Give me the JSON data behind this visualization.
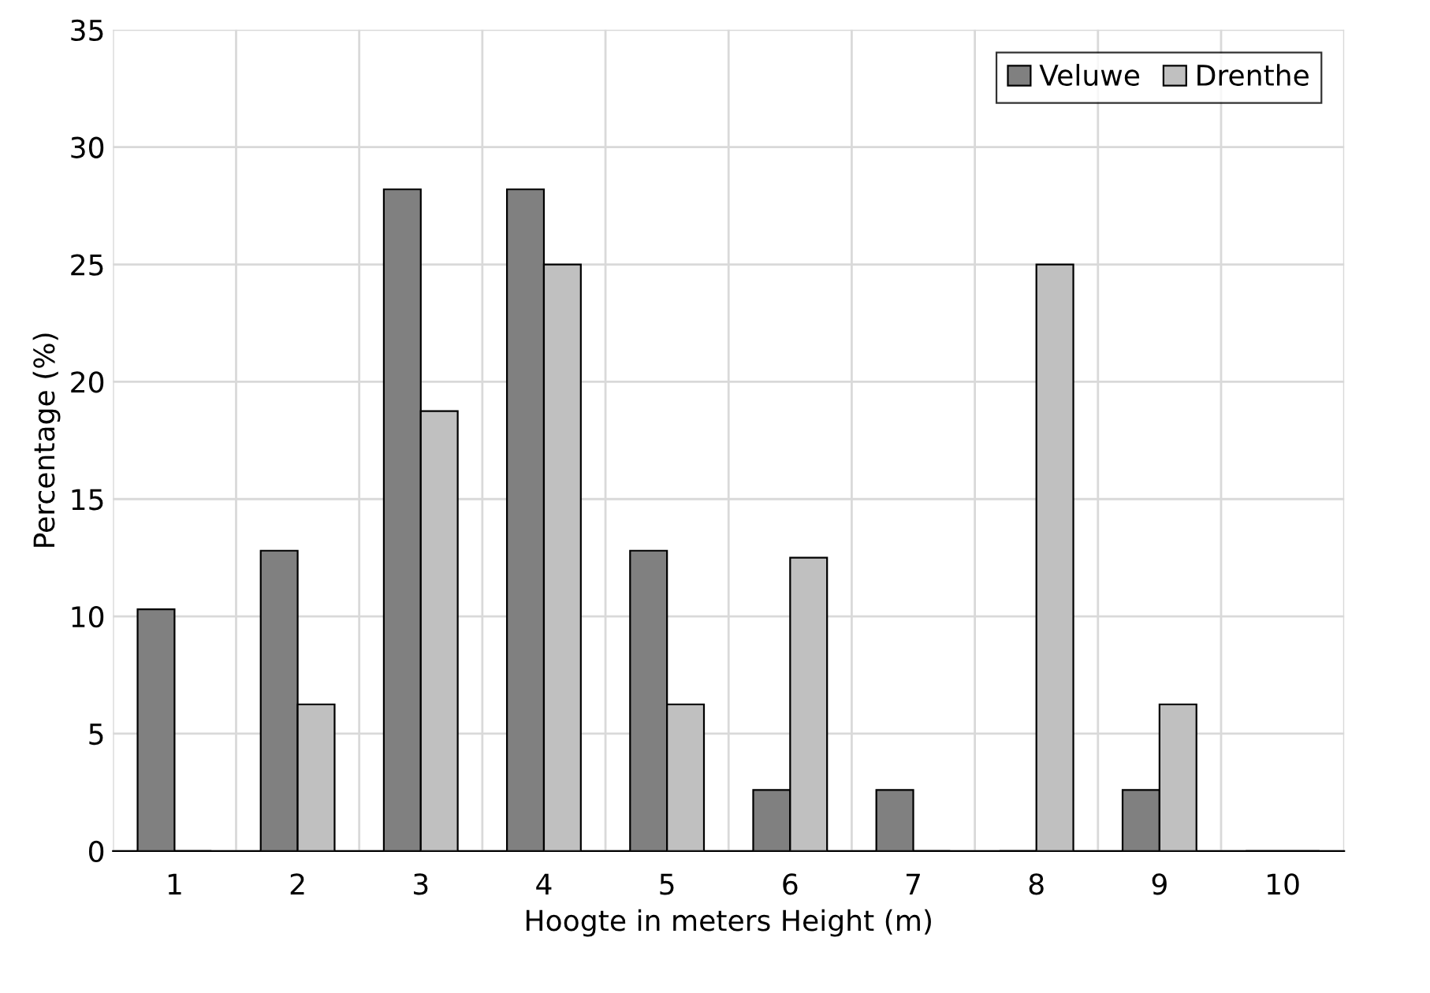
{
  "chart_data": {
    "type": "bar",
    "xlabel": "Hoogte in meters Height (m)",
    "ylabel": "Percentage (%)",
    "categories": [
      "1",
      "2",
      "3",
      "4",
      "5",
      "6",
      "7",
      "8",
      "9",
      "10"
    ],
    "series": [
      {
        "name": "Veluwe",
        "color": "#808080",
        "values": [
          10.3,
          12.8,
          28.2,
          28.2,
          12.8,
          2.6,
          2.6,
          0,
          2.6,
          0
        ]
      },
      {
        "name": "Drenthe",
        "color": "#c0c0c0",
        "values": [
          0,
          6.25,
          18.75,
          25,
          6.25,
          12.5,
          0,
          25,
          6.25,
          0
        ]
      }
    ],
    "ylim": [
      0,
      35
    ],
    "yticks": [
      0,
      5,
      10,
      15,
      20,
      25,
      30,
      35
    ],
    "grid": true,
    "legend": "top right"
  }
}
